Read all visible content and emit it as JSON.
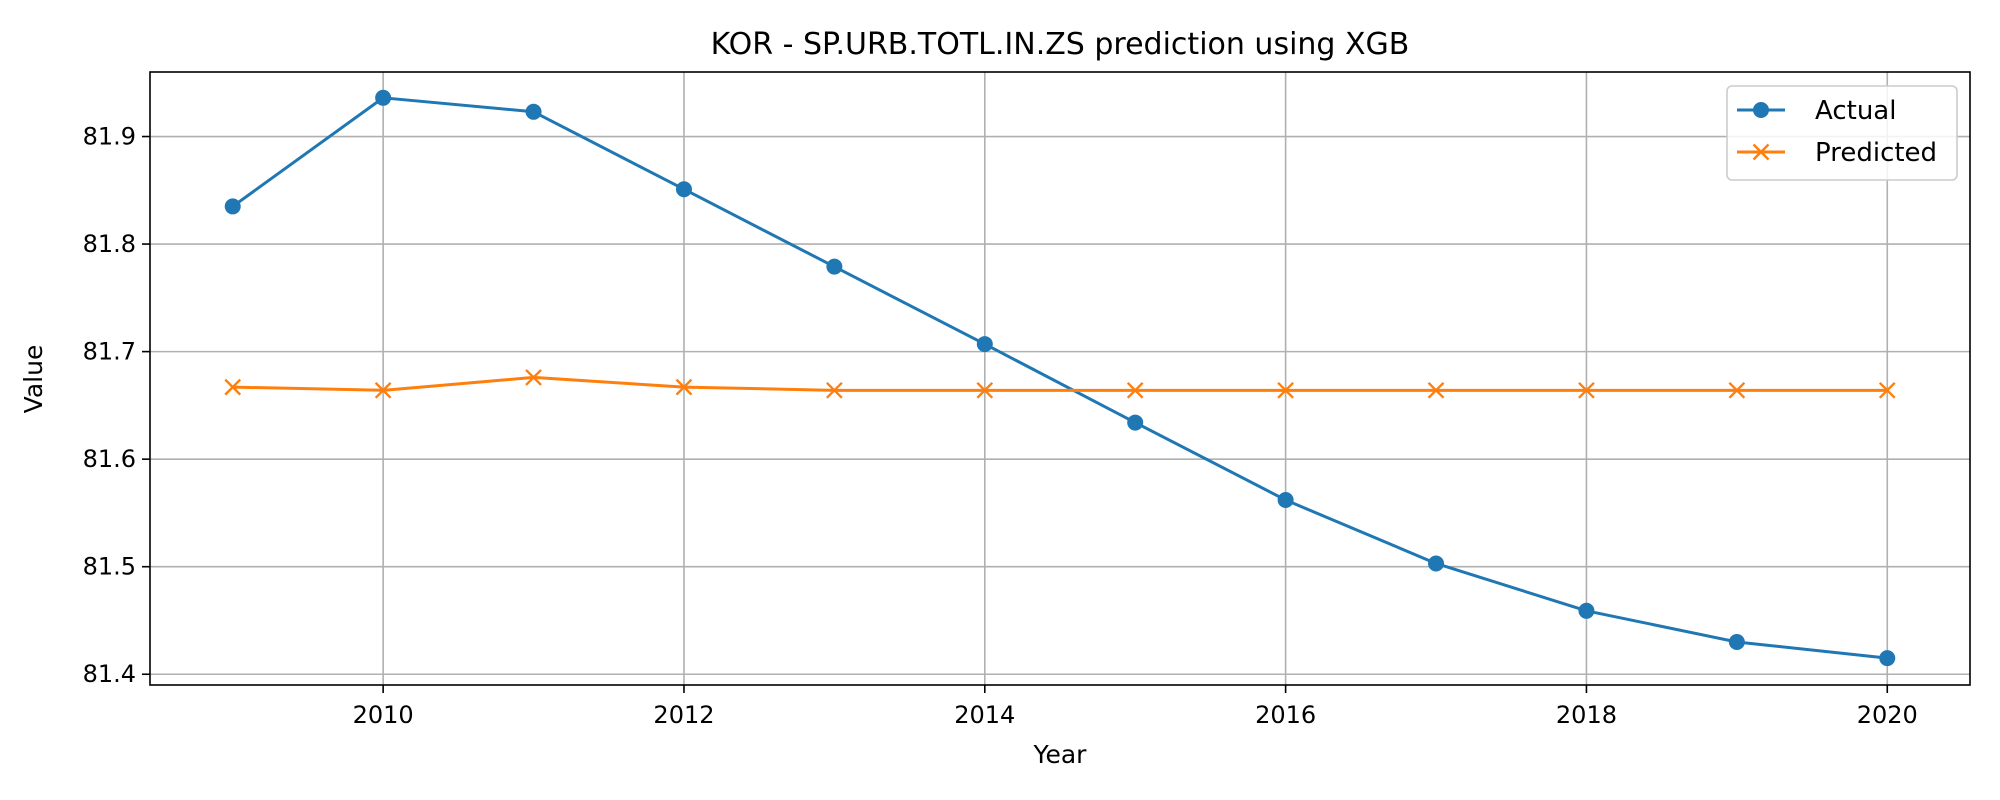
{
  "chart_data": {
    "type": "line",
    "title": "KOR - SP.URB.TOTL.IN.ZS prediction using XGB",
    "xlabel": "Year",
    "ylabel": "Value",
    "x": [
      2009,
      2010,
      2011,
      2012,
      2013,
      2014,
      2015,
      2016,
      2017,
      2018,
      2019,
      2020
    ],
    "xlim": [
      2008.45,
      2020.55
    ],
    "ylim": [
      81.39,
      81.96
    ],
    "xticks": [
      2010,
      2012,
      2014,
      2016,
      2018,
      2020
    ],
    "xtick_labels": [
      "2010",
      "2012",
      "2014",
      "2016",
      "2018",
      "2020"
    ],
    "yticks": [
      81.4,
      81.5,
      81.6,
      81.7,
      81.8,
      81.9
    ],
    "ytick_labels": [
      "81.4",
      "81.5",
      "81.6",
      "81.7",
      "81.8",
      "81.9"
    ],
    "grid": true,
    "legend_position": "top-right",
    "series": [
      {
        "name": "Actual",
        "color": "#1f77b4",
        "marker": "circle",
        "values": [
          81.835,
          81.936,
          81.923,
          81.851,
          81.779,
          81.707,
          81.634,
          81.562,
          81.503,
          81.459,
          81.43,
          81.415
        ]
      },
      {
        "name": "Predicted",
        "color": "#ff7f0e",
        "marker": "x",
        "values": [
          81.667,
          81.664,
          81.676,
          81.667,
          81.664,
          81.664,
          81.664,
          81.664,
          81.664,
          81.664,
          81.664,
          81.664
        ]
      }
    ]
  }
}
